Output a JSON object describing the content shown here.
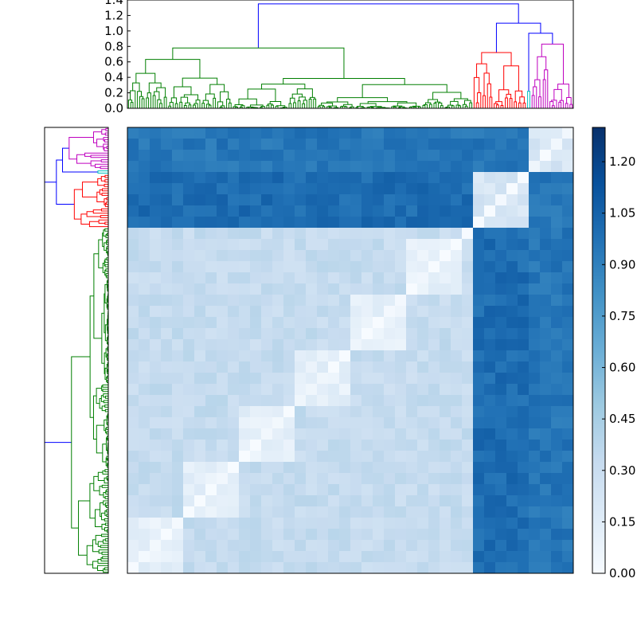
{
  "chart_data": {
    "type": "heatmap",
    "title": "",
    "n_leaves": 200,
    "top_dendrogram": {
      "ylim": [
        0,
        1.4
      ],
      "y_ticks": [
        "0.0",
        "0.2",
        "0.4",
        "0.6",
        "0.8",
        "1.0",
        "1.2",
        "1.4"
      ],
      "root_height": 1.35,
      "clusters": [
        {
          "color": "#007f00",
          "leaf_range": [
            0,
            155
          ],
          "height": 0.78
        },
        {
          "color": "#ff0000",
          "leaf_range": [
            155,
            179
          ],
          "height": 0.72
        },
        {
          "color": "#00bfbf",
          "leaf_range": [
            179,
            181
          ],
          "height": 0.22
        },
        {
          "color": "#bf00bf",
          "leaf_range": [
            181,
            200
          ],
          "height": 0.83
        }
      ],
      "link_color": "#0000ff"
    },
    "heatmap": {
      "colormap": "Blues",
      "vmin": 0.0,
      "vmax": 1.3
    },
    "colorbar": {
      "ticks": [
        "0.00",
        "0.15",
        "0.30",
        "0.45",
        "0.60",
        "0.75",
        "0.90",
        "1.05",
        "1.20"
      ],
      "tick_values": [
        0.0,
        0.15,
        0.3,
        0.45,
        0.6,
        0.75,
        0.9,
        1.05,
        1.2
      ]
    }
  }
}
